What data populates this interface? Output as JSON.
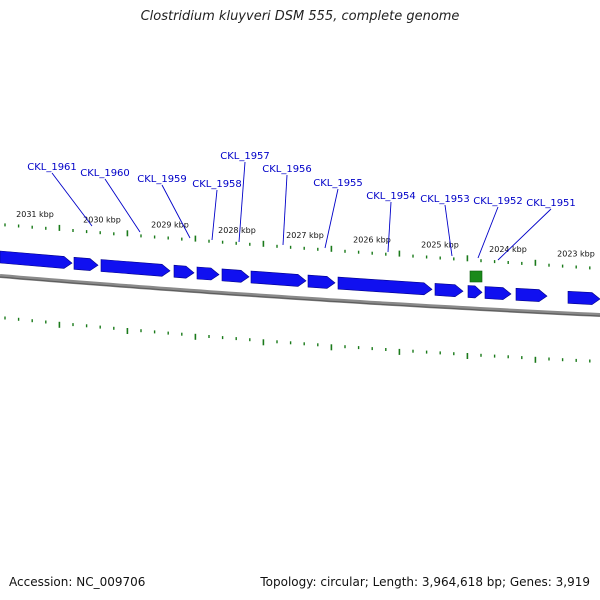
{
  "header": {
    "title": "Clostridium kluyveri DSM 555, complete genome"
  },
  "footer": {
    "accession": "Accession: NC_009706",
    "summary": "Topology: circular; Length: 3,964,618 bp; Genes: 3,919"
  },
  "colors": {
    "gene": "#1010f0",
    "gene_outline": "#00008a",
    "tick": "#1a7a1a",
    "backbone": "#8a8a8a",
    "label": "#0000c8",
    "callout": "#0000c8",
    "feature_marker": "#1a8a1a"
  },
  "ruler": {
    "labels": [
      "2031 kbp",
      "2030 kbp",
      "2029 kbp",
      "2028 kbp",
      "2027 kbp",
      "2026 kbp",
      "2025 kbp",
      "2024 kbp",
      "2023 kbp"
    ]
  },
  "gene_labels": [
    "CKL_1961",
    "CKL_1960",
    "CKL_1959",
    "CKL_1958",
    "CKL_1957",
    "CKL_1956",
    "CKL_1955",
    "CKL_1954",
    "CKL_1953",
    "CKL_1952",
    "CKL_1951"
  ]
}
